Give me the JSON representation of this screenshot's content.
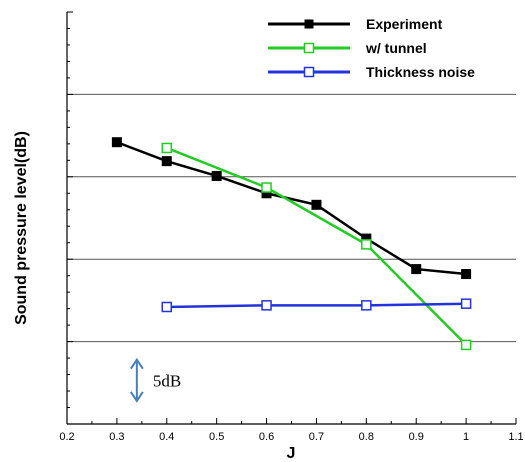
{
  "chart_data": {
    "type": "line",
    "xlabel": "J",
    "ylabel": "Sound pressure level(dB)",
    "xlim": [
      0.2,
      1.1
    ],
    "x_ticks": [
      "0.2",
      "0.3",
      "0.4",
      "0.5",
      "0.6",
      "0.7",
      "0.8",
      "0.9",
      "1",
      "1.1"
    ],
    "ylim": [
      -5,
      45
    ],
    "y_gridlines": [
      5,
      15,
      25,
      35
    ],
    "grid": "horizontal",
    "legend_position": "top-right",
    "series": [
      {
        "name": "Experiment",
        "color": "#000000",
        "marker": "filled-square",
        "x": [
          0.3,
          0.4,
          0.5,
          0.6,
          0.7,
          0.8,
          0.9,
          1.0
        ],
        "y": [
          29.2,
          26.9,
          25.1,
          23.0,
          21.6,
          17.5,
          13.8,
          13.2
        ]
      },
      {
        "name": "w/ tunnel",
        "color": "#22cc22",
        "marker": "open-square",
        "x": [
          0.4,
          0.6,
          0.8,
          1.0
        ],
        "y": [
          28.5,
          23.7,
          16.8,
          4.6
        ]
      },
      {
        "name": "Thickness noise",
        "color": "#2233dd",
        "marker": "open-square",
        "x": [
          0.4,
          0.6,
          0.8,
          1.0
        ],
        "y": [
          9.2,
          9.4,
          9.4,
          9.6
        ]
      }
    ],
    "annotations": [
      {
        "text": "5dB",
        "arrow_from": -2.2,
        "arrow_to": 2.8,
        "x": 0.34
      }
    ]
  }
}
